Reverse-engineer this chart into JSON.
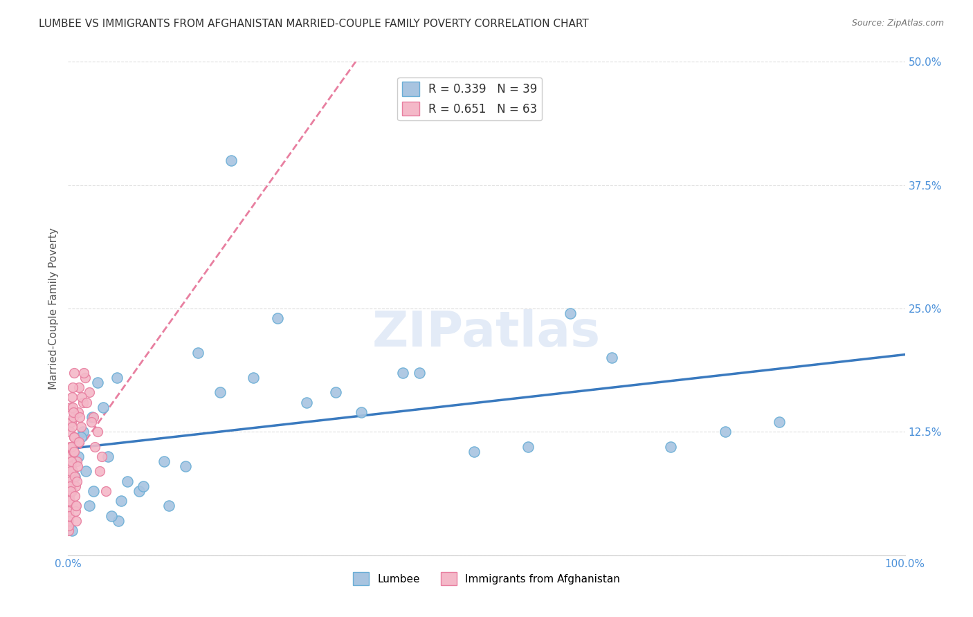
{
  "title": "LUMBEE VS IMMIGRANTS FROM AFGHANISTAN MARRIED-COUPLE FAMILY POVERTY CORRELATION CHART",
  "source": "Source: ZipAtlas.com",
  "xlabel": "",
  "ylabel": "Married-Couple Family Poverty",
  "watermark": "ZIPatlas",
  "xlim": [
    0,
    100
  ],
  "ylim": [
    0,
    50
  ],
  "yticks": [
    0,
    12.5,
    25.0,
    37.5,
    50.0
  ],
  "xticks": [
    0,
    25,
    50,
    75,
    100
  ],
  "xtick_labels": [
    "0.0%",
    "",
    "",
    "",
    "100.0%"
  ],
  "ytick_labels": [
    "",
    "12.5%",
    "25.0%",
    "37.5%",
    "50.0%"
  ],
  "lumbee_color": "#a8c4e0",
  "lumbee_edge_color": "#6aaed6",
  "afghanistan_color": "#f4b8c8",
  "afghanistan_edge_color": "#e87fa0",
  "trend_lumbee_color": "#3a7abf",
  "trend_afghanistan_color": "#e87fa0",
  "legend_lumbee_label": "Lumbee",
  "legend_afghanistan_label": "Immigrants from Afghanistan",
  "lumbee_R": 0.339,
  "lumbee_N": 39,
  "afghanistan_R": 0.651,
  "afghanistan_N": 63,
  "background_color": "#ffffff",
  "grid_color": "#dddddd",
  "title_color": "#333333",
  "axis_label_color": "#555555",
  "tick_label_color": "#4a90d9",
  "lumbee_x": [
    0.5,
    1.2,
    2.1,
    3.5,
    1.8,
    4.2,
    5.8,
    7.1,
    2.9,
    6.3,
    8.5,
    12.0,
    15.5,
    18.2,
    22.1,
    28.5,
    35.0,
    42.0,
    48.5,
    55.0,
    60.0,
    65.0,
    72.0,
    78.5,
    85.0,
    0.8,
    1.5,
    3.0,
    4.8,
    6.0,
    9.0,
    11.5,
    14.0,
    19.5,
    25.0,
    32.0,
    40.0,
    2.5,
    5.2
  ],
  "lumbee_y": [
    2.5,
    10.0,
    8.5,
    17.5,
    12.5,
    15.0,
    18.0,
    7.5,
    14.0,
    5.5,
    6.5,
    5.0,
    20.5,
    16.5,
    18.0,
    15.5,
    14.5,
    18.5,
    10.5,
    11.0,
    24.5,
    20.0,
    11.0,
    12.5,
    13.5,
    8.0,
    12.0,
    6.5,
    10.0,
    3.5,
    7.0,
    9.5,
    9.0,
    40.0,
    24.0,
    16.5,
    18.5,
    5.0,
    4.0
  ],
  "afghanistan_x": [
    0.1,
    0.2,
    0.15,
    0.3,
    0.05,
    0.08,
    0.12,
    0.25,
    0.35,
    0.18,
    0.22,
    0.4,
    0.5,
    0.6,
    0.7,
    0.45,
    0.55,
    0.65,
    0.75,
    0.85,
    0.9,
    1.0,
    1.1,
    1.2,
    1.3,
    1.5,
    1.8,
    2.0,
    2.5,
    3.0,
    3.5,
    4.0,
    0.03,
    0.06,
    0.1,
    0.15,
    0.2,
    0.28,
    0.32,
    0.38,
    0.42,
    0.48,
    0.52,
    0.58,
    0.62,
    0.68,
    0.72,
    0.78,
    0.82,
    0.88,
    0.92,
    0.98,
    1.05,
    1.15,
    1.25,
    1.4,
    1.6,
    1.9,
    2.2,
    2.8,
    3.2,
    3.8,
    4.5
  ],
  "afghanistan_y": [
    10.0,
    5.5,
    8.0,
    15.0,
    3.5,
    4.5,
    6.0,
    12.5,
    9.0,
    7.5,
    11.0,
    13.5,
    16.0,
    14.0,
    18.5,
    6.5,
    8.5,
    10.5,
    12.0,
    5.0,
    7.0,
    9.5,
    11.5,
    14.5,
    17.0,
    13.0,
    15.5,
    18.0,
    16.5,
    14.0,
    12.5,
    10.0,
    2.5,
    3.0,
    4.0,
    5.5,
    7.0,
    8.5,
    6.5,
    9.5,
    11.0,
    13.0,
    15.0,
    17.0,
    14.5,
    12.0,
    10.5,
    8.0,
    6.0,
    4.5,
    3.5,
    5.0,
    7.5,
    9.0,
    11.5,
    14.0,
    16.0,
    18.5,
    15.5,
    13.5,
    11.0,
    8.5,
    6.5
  ]
}
